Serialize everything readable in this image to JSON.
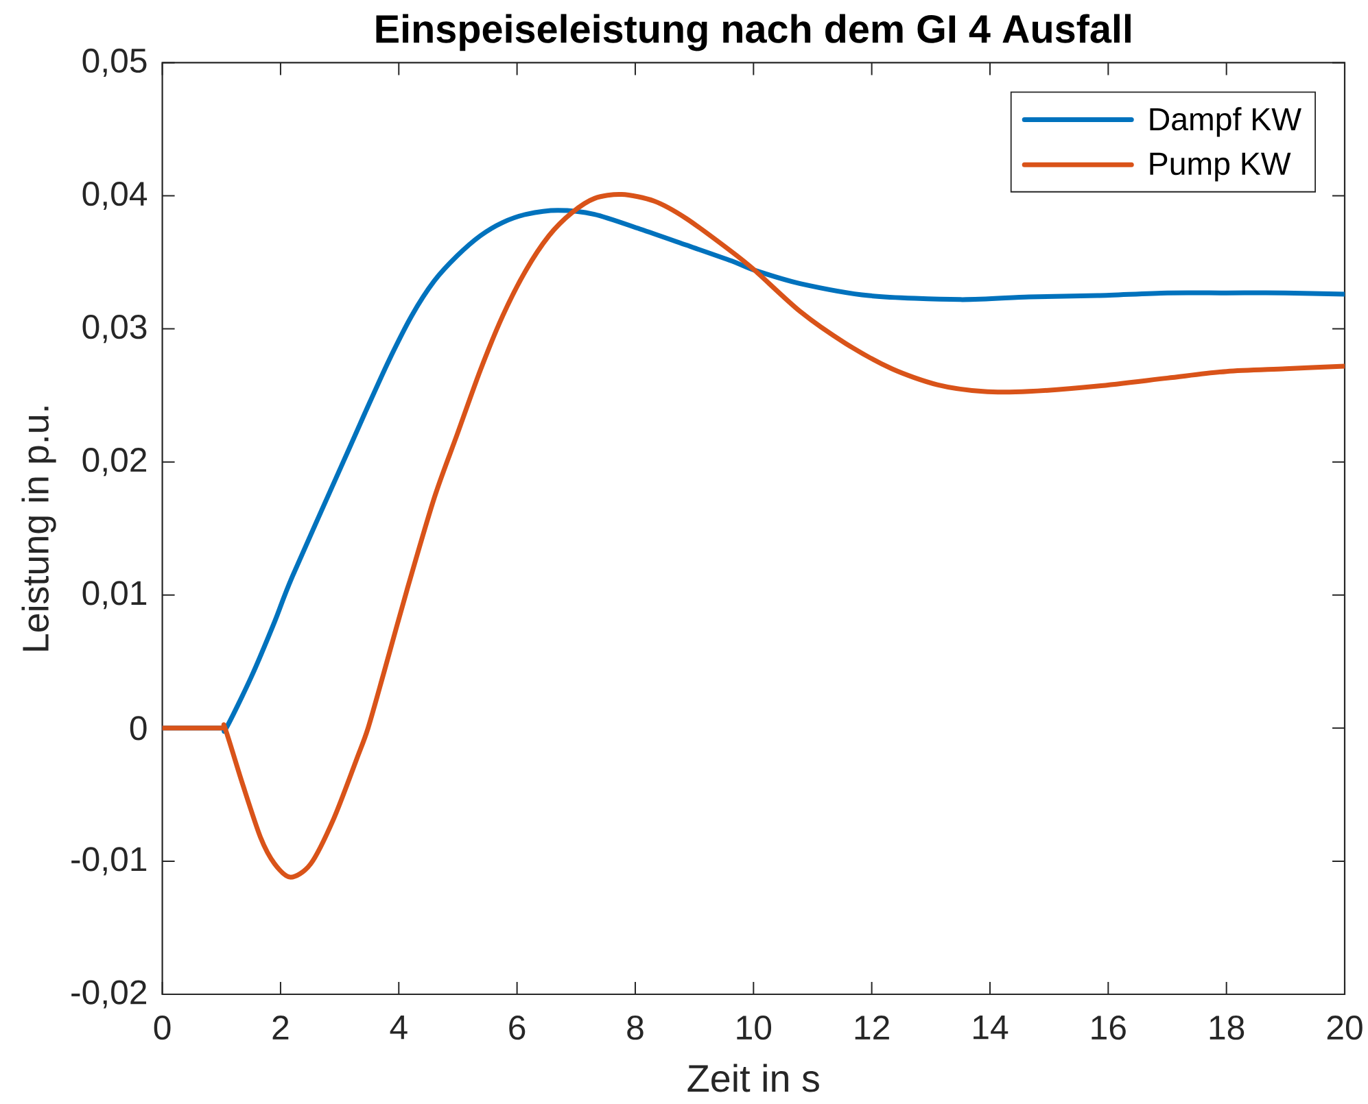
{
  "chart_data": {
    "type": "line",
    "title": "Einspeiseleistung nach dem GI 4 Ausfall",
    "xlabel": "Zeit in s",
    "ylabel": "Leistung in p.u.",
    "xlim": [
      0,
      20
    ],
    "ylim": [
      -0.02,
      0.05
    ],
    "xticks": [
      0,
      2,
      4,
      6,
      8,
      10,
      12,
      14,
      16,
      18,
      20
    ],
    "yticks": [
      {
        "value": -0.02,
        "label": "-0,02"
      },
      {
        "value": -0.01,
        "label": "-0,01"
      },
      0,
      {
        "value": 0.01,
        "label": "0,01"
      },
      {
        "value": 0.02,
        "label": "0,02"
      },
      {
        "value": 0.03,
        "label": "0,03"
      },
      {
        "value": 0.04,
        "label": "0,04"
      },
      {
        "value": 0.05,
        "label": "0,05"
      }
    ],
    "legend": "top right",
    "series": [
      {
        "name": "Dampf KW",
        "color": "#0072bd",
        "x": [
          0,
          0.5,
          1.0,
          1.08,
          1.51,
          1.9,
          2.2,
          3.06,
          3.44,
          3.83,
          4.22,
          4.6,
          4.99,
          5.38,
          5.76,
          6.15,
          6.69,
          7.31,
          8.08,
          8.86,
          9.63,
          10.02,
          10.79,
          11.95,
          13.5,
          14.66,
          15.82,
          17.0,
          18.0,
          19.0,
          20.0
        ],
        "values": [
          0,
          0,
          0,
          0,
          0.0039,
          0.008,
          0.0114,
          0.02,
          0.0238,
          0.0276,
          0.031,
          0.0336,
          0.0355,
          0.037,
          0.038,
          0.0386,
          0.0389,
          0.0386,
          0.0375,
          0.0363,
          0.0351,
          0.0344,
          0.0334,
          0.0325,
          0.0322,
          0.0324,
          0.0325,
          0.0327,
          0.0327,
          0.0327,
          0.0326
        ]
      },
      {
        "name": "Pump KW",
        "color": "#d95319",
        "x": [
          0,
          0.5,
          1.0,
          1.06,
          1.35,
          1.66,
          1.9,
          2.17,
          2.51,
          2.9,
          3.29,
          3.48,
          3.75,
          4.14,
          4.6,
          4.99,
          5.38,
          5.76,
          6.15,
          6.54,
          6.92,
          7.31,
          7.77,
          8.32,
          8.86,
          9.63,
          10.02,
          10.79,
          11.56,
          12.34,
          13.11,
          13.88,
          14.66,
          15.82,
          17.0,
          18.0,
          19.0,
          20.0
        ],
        "values": [
          0,
          0,
          0,
          0,
          -0.0041,
          -0.0082,
          -0.0102,
          -0.0112,
          -0.0102,
          -0.0068,
          -0.0023,
          0,
          0.0042,
          0.0104,
          0.0173,
          0.0221,
          0.0269,
          0.031,
          0.0344,
          0.037,
          0.0387,
          0.0398,
          0.0401,
          0.0396,
          0.0383,
          0.0358,
          0.0344,
          0.0313,
          0.0289,
          0.027,
          0.0258,
          0.0253,
          0.0253,
          0.0257,
          0.0263,
          0.0268,
          0.027,
          0.0272
        ]
      }
    ]
  }
}
